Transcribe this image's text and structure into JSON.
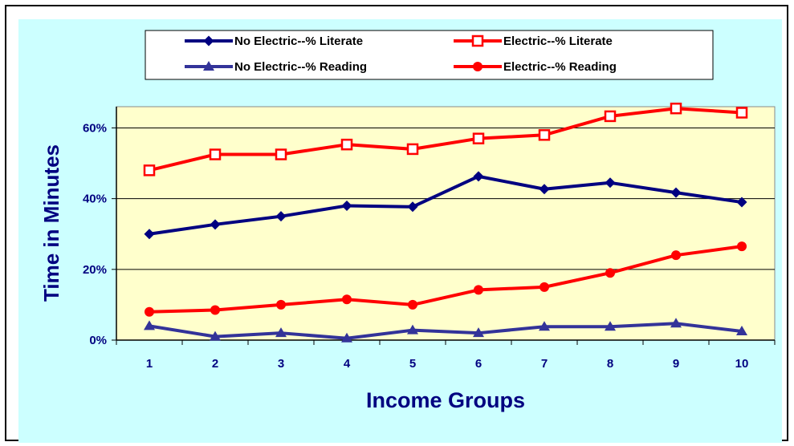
{
  "chart_data": {
    "type": "line",
    "title": "",
    "xlabel": "Income Groups",
    "ylabel": "Time in Minutes",
    "categories": [
      "1",
      "2",
      "3",
      "4",
      "5",
      "6",
      "7",
      "8",
      "9",
      "10"
    ],
    "y_ticks": [
      "0%",
      "20%",
      "40%",
      "60%"
    ],
    "ylim": [
      0,
      0.66
    ],
    "grid": "horizontal",
    "legend_position": "top",
    "series": [
      {
        "name": "No Electric--% Literate",
        "color": "#000080",
        "marker": "diamond",
        "values": [
          0.3,
          0.327,
          0.35,
          0.38,
          0.377,
          0.463,
          0.427,
          0.445,
          0.417,
          0.39
        ]
      },
      {
        "name": "Electric--% Literate",
        "color": "#ff0000",
        "marker": "square",
        "values": [
          0.48,
          0.525,
          0.525,
          0.553,
          0.54,
          0.57,
          0.58,
          0.633,
          0.655,
          0.643
        ]
      },
      {
        "name": "No Electric--% Reading",
        "color": "#333399",
        "marker": "triangle",
        "values": [
          0.04,
          0.01,
          0.02,
          0.005,
          0.028,
          0.02,
          0.038,
          0.038,
          0.047,
          0.025
        ]
      },
      {
        "name": "Electric--% Reading",
        "color": "#ff0000",
        "marker": "circle",
        "values": [
          0.08,
          0.085,
          0.1,
          0.115,
          0.1,
          0.142,
          0.15,
          0.19,
          0.24,
          0.265
        ]
      }
    ],
    "colors": {
      "chart_area_bg": "#ccffff",
      "plot_area_bg": "#ffffcc",
      "axis_title_color": "#000080"
    }
  }
}
